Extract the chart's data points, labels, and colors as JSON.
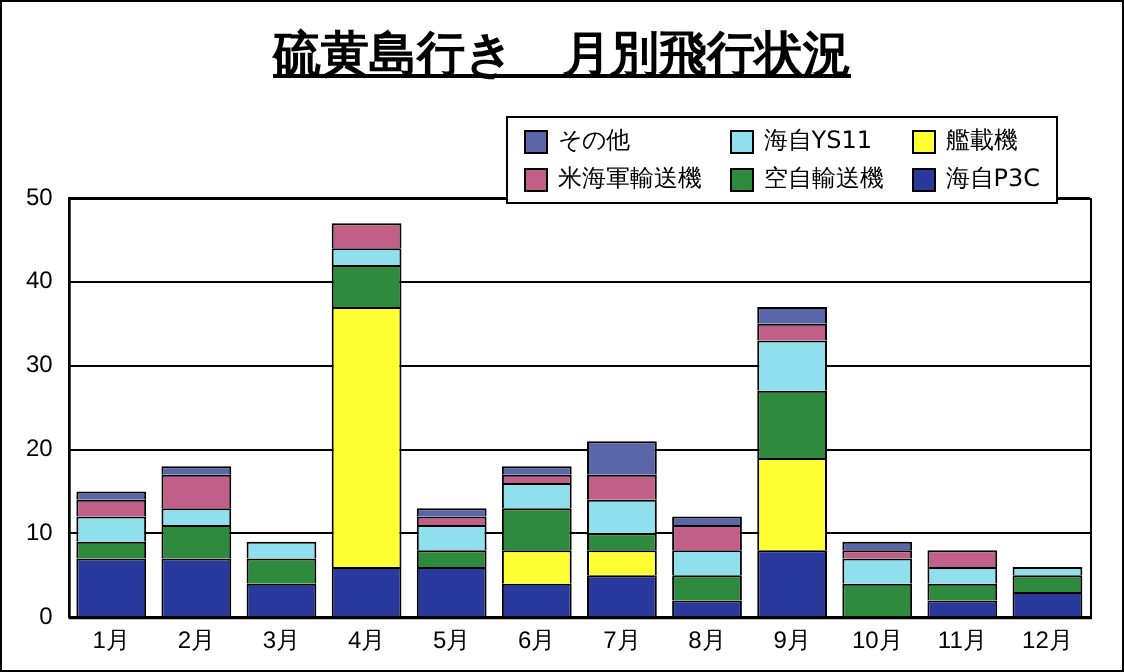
{
  "chart_data": {
    "type": "bar",
    "title": "硫黄島行き　月別飛行状況",
    "stacked": true,
    "legend": "top right",
    "grid": "y",
    "categories": [
      "1月",
      "2月",
      "3月",
      "4月",
      "5月",
      "6月",
      "7月",
      "8月",
      "9月",
      "10月",
      "11月",
      "12月"
    ],
    "ylim": [
      0,
      50
    ],
    "yticks": [
      0,
      10,
      20,
      30,
      40,
      50
    ],
    "series": [
      {
        "name": "海自P3C",
        "color": "#2a3a9c",
        "values": [
          7,
          7,
          4,
          6,
          6,
          4,
          5,
          2,
          8,
          0,
          2,
          3
        ]
      },
      {
        "name": "艦載機",
        "color": "#ffff33",
        "values": [
          0,
          0,
          0,
          31,
          0,
          4,
          3,
          0,
          11,
          0,
          0,
          0
        ]
      },
      {
        "name": "空自輸送機",
        "color": "#2e8b3e",
        "values": [
          2,
          4,
          3,
          5,
          2,
          5,
          2,
          3,
          8,
          4,
          2,
          2
        ]
      },
      {
        "name": "海自YS11",
        "color": "#8fe0ec",
        "values": [
          3,
          2,
          2,
          2,
          3,
          3,
          4,
          3,
          6,
          3,
          2,
          1
        ]
      },
      {
        "name": "米海軍輸送機",
        "color": "#c06088",
        "values": [
          2,
          4,
          0,
          3,
          1,
          1,
          3,
          3,
          2,
          1,
          2,
          0
        ]
      },
      {
        "name": "その他",
        "color": "#5a66a8",
        "values": [
          1,
          1,
          0,
          0,
          1,
          1,
          4,
          1,
          2,
          1,
          0,
          0
        ]
      }
    ]
  }
}
